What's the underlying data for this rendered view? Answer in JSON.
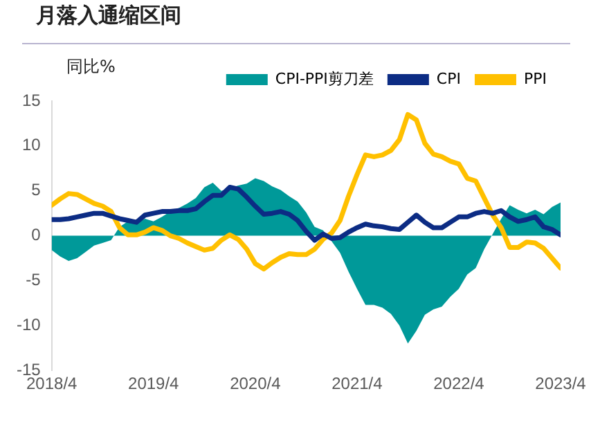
{
  "chart_data": {
    "type": "line",
    "title": "月落入通缩区间",
    "ylabel": "同比%",
    "x": [
      "2018-04",
      "2018-05",
      "2018-06",
      "2018-07",
      "2018-08",
      "2018-09",
      "2018-10",
      "2018-11",
      "2018-12",
      "2019-01",
      "2019-02",
      "2019-03",
      "2019-04",
      "2019-05",
      "2019-06",
      "2019-07",
      "2019-08",
      "2019-09",
      "2019-10",
      "2019-11",
      "2019-12",
      "2020-01",
      "2020-02",
      "2020-03",
      "2020-04",
      "2020-05",
      "2020-06",
      "2020-07",
      "2020-08",
      "2020-09",
      "2020-10",
      "2020-11",
      "2020-12",
      "2021-01",
      "2021-02",
      "2021-03",
      "2021-04",
      "2021-05",
      "2021-06",
      "2021-07",
      "2021-08",
      "2021-09",
      "2021-10",
      "2021-11",
      "2021-12",
      "2022-01",
      "2022-02",
      "2022-03",
      "2022-04",
      "2022-05",
      "2022-06",
      "2022-07",
      "2022-08",
      "2022-09",
      "2022-10",
      "2022-11",
      "2022-12",
      "2023-01",
      "2023-02",
      "2023-03",
      "2023-04"
    ],
    "series": [
      {
        "name": "CPI-PPI剪刀差",
        "type": "area",
        "color": "#009999",
        "values": [
          -1.6,
          -2.3,
          -2.8,
          -2.5,
          -1.8,
          -1.1,
          -0.8,
          -0.5,
          1.0,
          1.6,
          1.4,
          1.9,
          1.6,
          2.1,
          2.7,
          3.1,
          3.6,
          4.2,
          5.4,
          5.9,
          5.0,
          5.3,
          5.6,
          5.8,
          6.4,
          6.1,
          5.5,
          5.1,
          4.4,
          3.8,
          2.6,
          1.0,
          0.6,
          -0.6,
          -1.9,
          -4.0,
          -5.9,
          -7.7,
          -7.7,
          -8.0,
          -8.7,
          -10.0,
          -12.0,
          -10.6,
          -8.8,
          -8.2,
          -7.9,
          -6.8,
          -5.9,
          -4.3,
          -3.6,
          -1.5,
          0.2,
          1.9,
          3.4,
          2.9,
          2.5,
          2.9,
          2.4,
          3.2,
          3.7
        ]
      },
      {
        "name": "CPI",
        "color": "#0c2c84",
        "values": [
          1.8,
          1.8,
          1.9,
          2.1,
          2.3,
          2.5,
          2.5,
          2.2,
          1.9,
          1.7,
          1.5,
          2.3,
          2.5,
          2.7,
          2.7,
          2.8,
          2.8,
          3.0,
          3.8,
          4.5,
          4.5,
          5.4,
          5.2,
          4.3,
          3.3,
          2.4,
          2.5,
          2.7,
          2.4,
          1.7,
          0.5,
          -0.5,
          0.2,
          -0.3,
          -0.2,
          0.4,
          0.9,
          1.3,
          1.1,
          1.0,
          0.8,
          0.7,
          1.5,
          2.3,
          1.5,
          0.9,
          0.9,
          1.5,
          2.1,
          2.1,
          2.5,
          2.7,
          2.5,
          2.8,
          2.1,
          1.6,
          1.8,
          2.1,
          1.0,
          0.7,
          0.1
        ]
      },
      {
        "name": "PPI",
        "color": "#ffc000",
        "values": [
          3.4,
          4.1,
          4.7,
          4.6,
          4.1,
          3.6,
          3.3,
          2.7,
          0.9,
          0.1,
          0.1,
          0.4,
          0.9,
          0.6,
          0.0,
          -0.3,
          -0.8,
          -1.2,
          -1.6,
          -1.4,
          -0.5,
          0.1,
          -0.4,
          -1.5,
          -3.1,
          -3.7,
          -3.0,
          -2.4,
          -2.0,
          -2.1,
          -2.1,
          -1.5,
          -0.4,
          0.3,
          1.7,
          4.4,
          6.8,
          9.0,
          8.8,
          9.0,
          9.5,
          10.7,
          13.5,
          12.9,
          10.3,
          9.1,
          8.8,
          8.3,
          8.0,
          6.4,
          6.1,
          4.2,
          2.3,
          0.9,
          -1.3,
          -1.3,
          -0.7,
          -0.8,
          -1.4,
          -2.5,
          -3.6
        ]
      }
    ],
    "xlim": [
      "2018-04",
      "2023-04"
    ],
    "xticks": [
      {
        "value": "2018-04",
        "label": "2018/4"
      },
      {
        "value": "2019-04",
        "label": "2019/4"
      },
      {
        "value": "2020-04",
        "label": "2020/4"
      },
      {
        "value": "2021-04",
        "label": "2021/4"
      },
      {
        "value": "2022-04",
        "label": "2022/4"
      },
      {
        "value": "2023-04",
        "label": "2023/4"
      }
    ],
    "ylim": [
      -15,
      15
    ],
    "yticks": [
      -15,
      -10,
      -5,
      0,
      5,
      10,
      15
    ],
    "grid": false,
    "legend": "top",
    "marker": "none",
    "line_style": "solid"
  }
}
